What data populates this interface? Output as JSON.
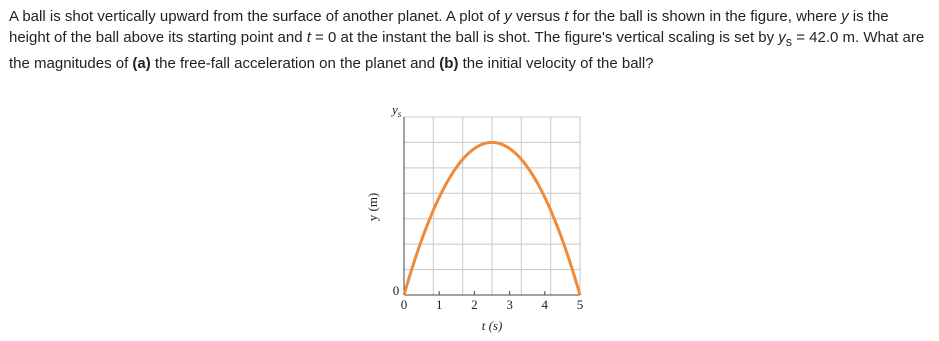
{
  "question": [
    "A ball is shot vertically upward from the surface of another planet. A plot of ",
    "y",
    " versus ",
    "t",
    " for the ball is shown in the figure, where ",
    "y",
    " is the height of the ball above its starting point and ",
    "t",
    " = 0 at the instant the ball is shot. The figure's vertical scaling is set by ",
    "y",
    "s",
    " = 42.0 m. What are the magnitudes of ",
    "(a)",
    " the free-fall acceleration on the planet and ",
    "(b)",
    " the initial velocity of the ball?"
  ],
  "figure": {
    "type": "line",
    "y_top_label": "y",
    "y_top_sub": "s",
    "y_zero_label": "0",
    "ylabel": "y (m)",
    "xlabel": "t (s)",
    "xlim": [
      0,
      5
    ],
    "ylim": [
      0,
      42
    ],
    "xticks": [
      0,
      1,
      2,
      3,
      4,
      5
    ],
    "color": "#ef8a3a",
    "x": [
      0,
      2.5,
      5
    ],
    "values": [
      0,
      36,
      0
    ]
  }
}
